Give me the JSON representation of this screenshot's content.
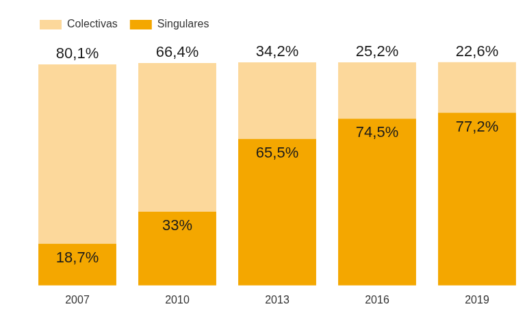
{
  "chart_data": {
    "type": "bar",
    "stacked": true,
    "categories": [
      "2007",
      "2010",
      "2013",
      "2016",
      "2019"
    ],
    "series": [
      {
        "name": "Colectivas",
        "color": "#fcd89b",
        "values": [
          80.1,
          66.4,
          34.2,
          25.2,
          22.6
        ],
        "value_labels": [
          "80,1%",
          "66,4%",
          "34,2%",
          "25,2%",
          "22,6%"
        ]
      },
      {
        "name": "Singulares",
        "color": "#f4a700",
        "values": [
          18.7,
          33,
          65.5,
          74.5,
          77.2
        ],
        "value_labels": [
          "18,7%",
          "33%",
          "65,5%",
          "74,5%",
          "77,2%"
        ]
      }
    ],
    "ylim": [
      0,
      100
    ],
    "grid": false,
    "legend": "top-left",
    "data_labels": true,
    "tick_labels": "x"
  }
}
